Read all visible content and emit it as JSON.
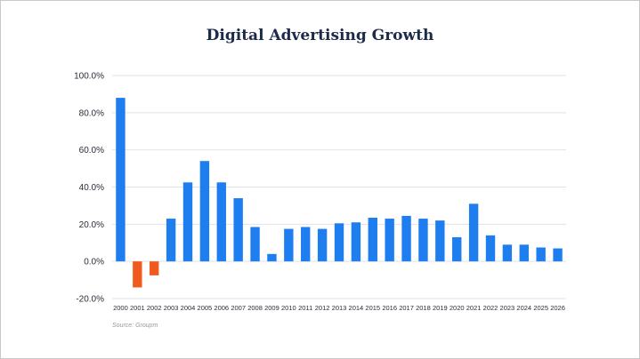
{
  "chart_data": {
    "type": "bar",
    "title": "Digital Advertising Growth",
    "xlabel": "",
    "ylabel": "",
    "ylim": [
      -20,
      100
    ],
    "yticks": [
      "-20.0%",
      "0.0%",
      "20.0%",
      "40.0%",
      "60.0%",
      "80.0%",
      "100.0%"
    ],
    "ytick_values": [
      -20,
      0,
      20,
      40,
      60,
      80,
      100
    ],
    "categories": [
      "2000",
      "2001",
      "2002",
      "2003",
      "2004",
      "2005",
      "2006",
      "2007",
      "2008",
      "2009",
      "2010",
      "2011",
      "2012",
      "2013",
      "2014",
      "2015",
      "2016",
      "2017",
      "2018",
      "2019",
      "2020",
      "2021",
      "2022",
      "2023",
      "2024",
      "2025",
      "2026"
    ],
    "values": [
      88,
      -14,
      -7.5,
      23,
      42.5,
      54,
      42.5,
      34,
      18.5,
      4,
      17.5,
      18.5,
      17.5,
      20.5,
      21,
      23.5,
      23,
      24.5,
      23,
      22,
      13,
      31,
      14,
      9,
      9,
      7.5,
      7
    ],
    "grid": true,
    "colors": {
      "positive": "#1e7ef0",
      "negative": "#f05a1e"
    },
    "source": "Source: Groupm"
  }
}
